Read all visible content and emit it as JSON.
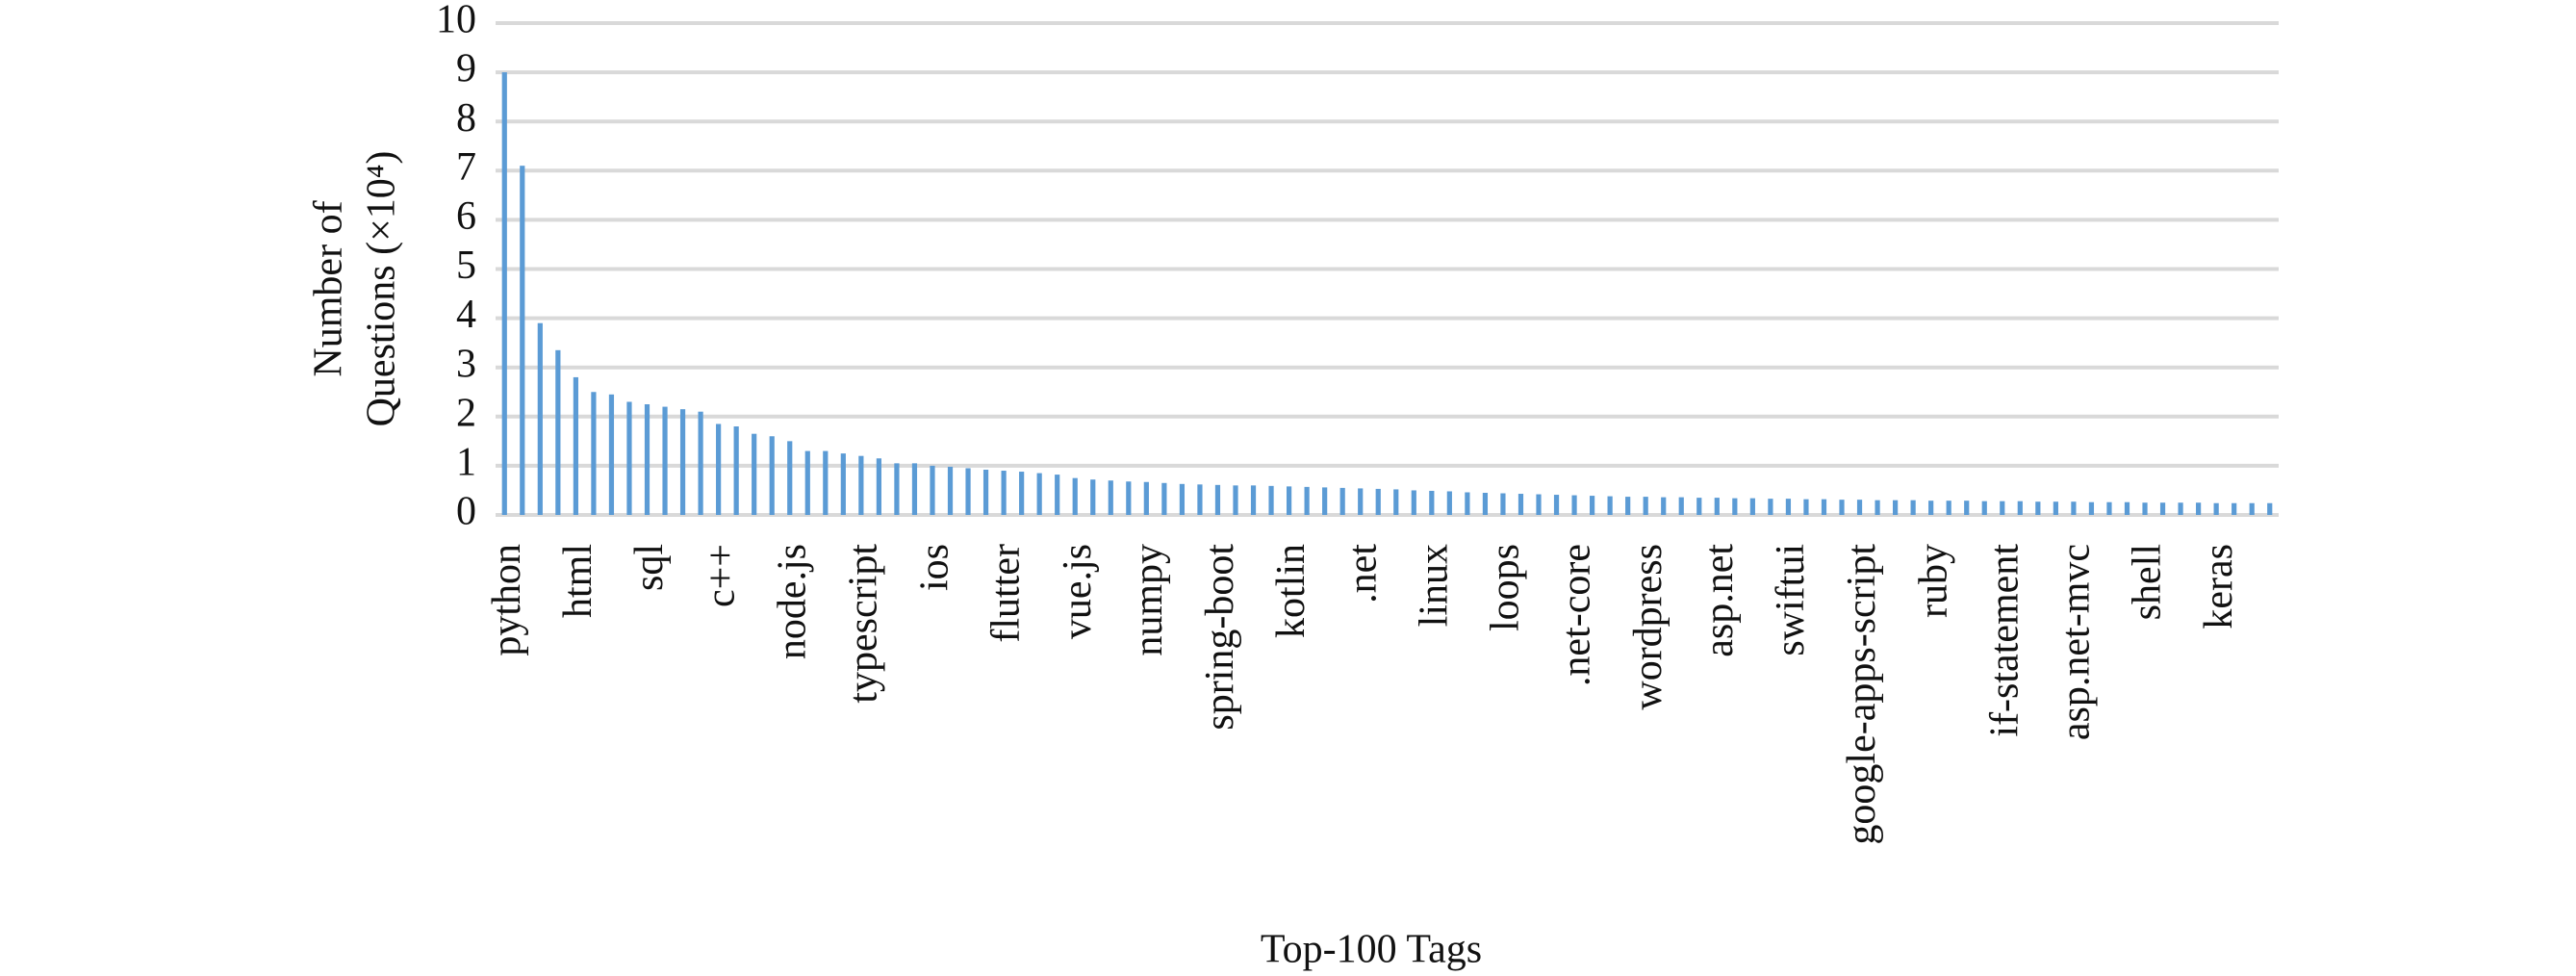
{
  "chart_data": {
    "type": "bar",
    "xlabel": "Top-100 Tags",
    "ylabel": [
      "Number of",
      "Questions (×10⁴)"
    ],
    "categories": [
      "python",
      null,
      null,
      null,
      "html",
      null,
      null,
      null,
      "sql",
      null,
      null,
      null,
      "c++",
      null,
      null,
      null,
      "node.js",
      null,
      null,
      null,
      "typescript",
      null,
      null,
      null,
      "ios",
      null,
      null,
      null,
      "flutter",
      null,
      null,
      null,
      "vue.js",
      null,
      null,
      null,
      "numpy",
      null,
      null,
      null,
      "spring-boot",
      null,
      null,
      null,
      "kotlin",
      null,
      null,
      null,
      ".net",
      null,
      null,
      null,
      "linux",
      null,
      null,
      null,
      "loops",
      null,
      null,
      null,
      ".net-core",
      null,
      null,
      null,
      "wordpress",
      null,
      null,
      null,
      "asp.net",
      null,
      null,
      null,
      "swiftui",
      null,
      null,
      null,
      "google-apps-script",
      null,
      null,
      null,
      "ruby",
      null,
      null,
      null,
      "if-statement",
      null,
      null,
      null,
      "asp.net-mvc",
      null,
      null,
      null,
      "shell",
      null,
      null,
      null,
      "keras",
      null,
      null,
      null
    ],
    "values": [
      9.0,
      7.1,
      3.9,
      3.35,
      2.8,
      2.5,
      2.45,
      2.3,
      2.25,
      2.2,
      2.15,
      2.1,
      1.85,
      1.8,
      1.65,
      1.6,
      1.5,
      1.3,
      1.3,
      1.25,
      1.2,
      1.15,
      1.05,
      1.05,
      1.0,
      0.98,
      0.95,
      0.92,
      0.9,
      0.88,
      0.85,
      0.82,
      0.75,
      0.72,
      0.7,
      0.68,
      0.67,
      0.65,
      0.63,
      0.62,
      0.61,
      0.6,
      0.6,
      0.59,
      0.58,
      0.57,
      0.56,
      0.55,
      0.54,
      0.53,
      0.52,
      0.5,
      0.49,
      0.48,
      0.46,
      0.45,
      0.44,
      0.43,
      0.42,
      0.41,
      0.4,
      0.39,
      0.38,
      0.37,
      0.37,
      0.36,
      0.36,
      0.35,
      0.35,
      0.34,
      0.34,
      0.33,
      0.33,
      0.32,
      0.32,
      0.31,
      0.31,
      0.3,
      0.3,
      0.3,
      0.29,
      0.29,
      0.29,
      0.28,
      0.28,
      0.28,
      0.27,
      0.27,
      0.27,
      0.26,
      0.26,
      0.26,
      0.25,
      0.25,
      0.25,
      0.25,
      0.24,
      0.24,
      0.24,
      0.24
    ],
    "color": "#5b9bd5",
    "ylim": [
      0,
      10
    ],
    "yticks": [
      0,
      1,
      2,
      3,
      4,
      5,
      6,
      7,
      8,
      9,
      10
    ],
    "grid": true
  }
}
